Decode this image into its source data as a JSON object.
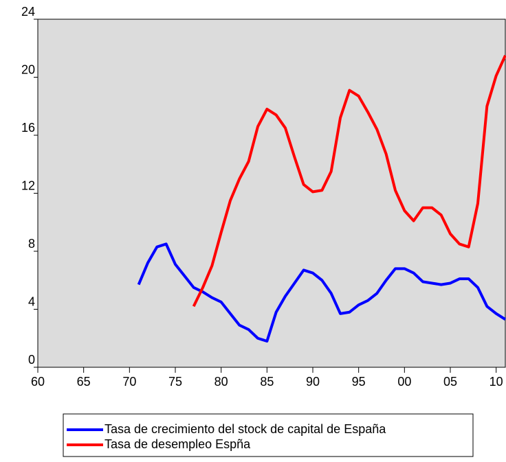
{
  "chart_data": {
    "type": "line",
    "x": [
      1971,
      1972,
      1973,
      1974,
      1975,
      1976,
      1977,
      1978,
      1979,
      1980,
      1981,
      1982,
      1983,
      1984,
      1985,
      1986,
      1987,
      1988,
      1989,
      1990,
      1991,
      1992,
      1993,
      1994,
      1995,
      1996,
      1997,
      1998,
      1999,
      2000,
      2001,
      2002,
      2003,
      2004,
      2005,
      2006,
      2007,
      2008,
      2009,
      2010,
      2011
    ],
    "series": [
      {
        "name": "Tasa de crecimiento del stock de capital de España",
        "color": "#0000ff",
        "values": [
          5.7,
          7.2,
          8.3,
          8.5,
          7.1,
          6.3,
          5.5,
          5.2,
          4.8,
          4.5,
          3.7,
          2.9,
          2.6,
          2.0,
          1.8,
          3.8,
          4.9,
          5.8,
          6.7,
          6.5,
          6.0,
          5.1,
          3.7,
          3.8,
          4.3,
          4.6,
          5.1,
          6.0,
          6.8,
          6.8,
          6.5,
          5.9,
          5.8,
          5.7,
          5.8,
          6.1,
          6.1,
          5.5,
          4.2,
          3.7,
          3.3
        ]
      },
      {
        "name": "Tasa de desempleo Espña",
        "color": "#ff0000",
        "values": [
          null,
          null,
          null,
          null,
          null,
          null,
          4.2,
          5.5,
          7.0,
          9.3,
          11.5,
          13.0,
          14.2,
          16.6,
          17.8,
          17.4,
          16.5,
          14.5,
          12.6,
          12.1,
          12.2,
          13.5,
          17.2,
          19.1,
          18.7,
          17.6,
          16.4,
          14.7,
          12.2,
          10.8,
          10.1,
          11.0,
          11.0,
          10.5,
          9.2,
          8.5,
          8.3,
          11.3,
          18.0,
          20.1,
          21.5
        ]
      }
    ],
    "xlim": [
      1960,
      2011
    ],
    "xticks": [
      {
        "value": 1960,
        "label": "60"
      },
      {
        "value": 1965,
        "label": "65"
      },
      {
        "value": 1970,
        "label": "70"
      },
      {
        "value": 1975,
        "label": "75"
      },
      {
        "value": 1980,
        "label": "80"
      },
      {
        "value": 1985,
        "label": "85"
      },
      {
        "value": 1990,
        "label": "90"
      },
      {
        "value": 1995,
        "label": "95"
      },
      {
        "value": 2000,
        "label": "00"
      },
      {
        "value": 2005,
        "label": "05"
      },
      {
        "value": 2010,
        "label": "10"
      }
    ],
    "ylim": [
      0,
      24
    ],
    "yticks": [
      0,
      4,
      8,
      12,
      16,
      20,
      24
    ],
    "background": "#dcdcdc"
  }
}
